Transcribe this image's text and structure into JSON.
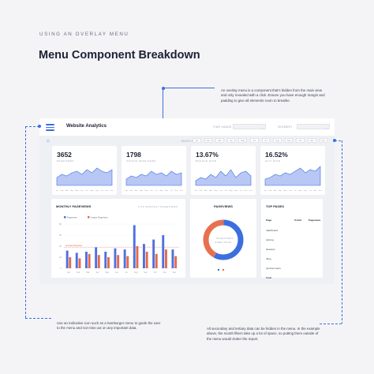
{
  "eyebrow": "USING AN OVERLAY MENU",
  "title": "Menu Component Breakdown",
  "notes": {
    "top": "An overlay menu is a component that's hidden from the main view and only revealed with a click. Ensure you have enough margin and padding to give all elements room to breathe.",
    "left": "Use an indicative icon such as a hamburger menu to guide the user to the menu and not miss out on any important data.",
    "right": "All secondary and tertiary data can be hidden in the menu. In the example above, the month filters take up a lot of space, so putting them outside of the menu would clutter the report."
  },
  "dashboard": {
    "app_title": "Website Analytics",
    "filters": [
      {
        "label": "TIME RANGE",
        "value": ""
      },
      {
        "label": "SEGMENT",
        "value": ""
      }
    ],
    "month_label": "MONTH",
    "months": [
      "Jan",
      "Feb",
      "Mar",
      "Apr",
      "May",
      "Jun",
      "Jul",
      "Aug",
      "Sep",
      "Oct",
      "Nov",
      "Dec"
    ],
    "kpis": [
      {
        "value": "3652",
        "label": "PAGEVIEWS",
        "series": [
          5,
          7,
          6,
          8,
          9,
          7,
          10,
          8,
          11,
          9,
          8,
          10
        ]
      },
      {
        "value": "1798",
        "label": "UNIQUE PAGEVIEWS",
        "series": [
          4,
          6,
          5,
          7,
          6,
          9,
          7,
          8,
          6,
          9,
          7,
          8
        ]
      },
      {
        "value": "13.67%",
        "label": "BOUNCE RATE",
        "series": [
          3,
          5,
          4,
          7,
          5,
          9,
          6,
          10,
          5,
          8,
          9,
          6
        ]
      },
      {
        "value": "16.52%",
        "label": "EXIT RATE",
        "series": [
          4,
          5,
          7,
          6,
          8,
          7,
          9,
          11,
          8,
          10,
          9,
          12
        ]
      }
    ],
    "monthly": {
      "title": "MONTHLY PAGEVIEWS",
      "subtitle": "5.6K MONTHLY PAGEVIEWS",
      "legend": [
        "Pageviews",
        "Unique Pageviews"
      ],
      "annotation": "Average Pageviews",
      "series_colors": [
        "#4f6fe0",
        "#e26a4f"
      ]
    },
    "pageviews_donut": {
      "title": "PAGEVIEWS",
      "center_label": "PAGEVIEWS",
      "center_sub": "USER ROLE",
      "segments": [
        {
          "value": 58,
          "color": "#3b6fe0"
        },
        {
          "value": 42,
          "color": "#e8704f"
        }
      ]
    },
    "top_pages": {
      "title": "TOP PAGES",
      "headers": [
        "Page",
        "% Exit",
        "Pageviews"
      ],
      "rows": [
        [
          "/dashboard",
          "",
          ""
        ],
        [
          "/pricing",
          "",
          ""
        ],
        [
          "/features",
          "",
          ""
        ],
        [
          "/blog",
          "",
          ""
        ],
        [
          "/product-news",
          "",
          ""
        ],
        [
          "Total",
          "",
          ""
        ]
      ]
    }
  },
  "chart_data": {
    "type": "bar",
    "categories": [
      "Jan",
      "Feb",
      "Mar",
      "Apr",
      "May",
      "Jun",
      "Jul",
      "Aug",
      "Sep",
      "Oct",
      "Nov",
      "Dec"
    ],
    "series": [
      {
        "name": "Pageviews",
        "values": [
          32,
          28,
          30,
          38,
          30,
          36,
          34,
          78,
          44,
          52,
          60,
          34
        ]
      },
      {
        "name": "Unique Pageviews",
        "values": [
          20,
          18,
          26,
          24,
          20,
          24,
          22,
          40,
          30,
          26,
          34,
          22
        ]
      }
    ],
    "ylim": [
      0,
      80
    ],
    "yticks": [
      0,
      20,
      40,
      60,
      80
    ],
    "annotation_value": 38
  }
}
